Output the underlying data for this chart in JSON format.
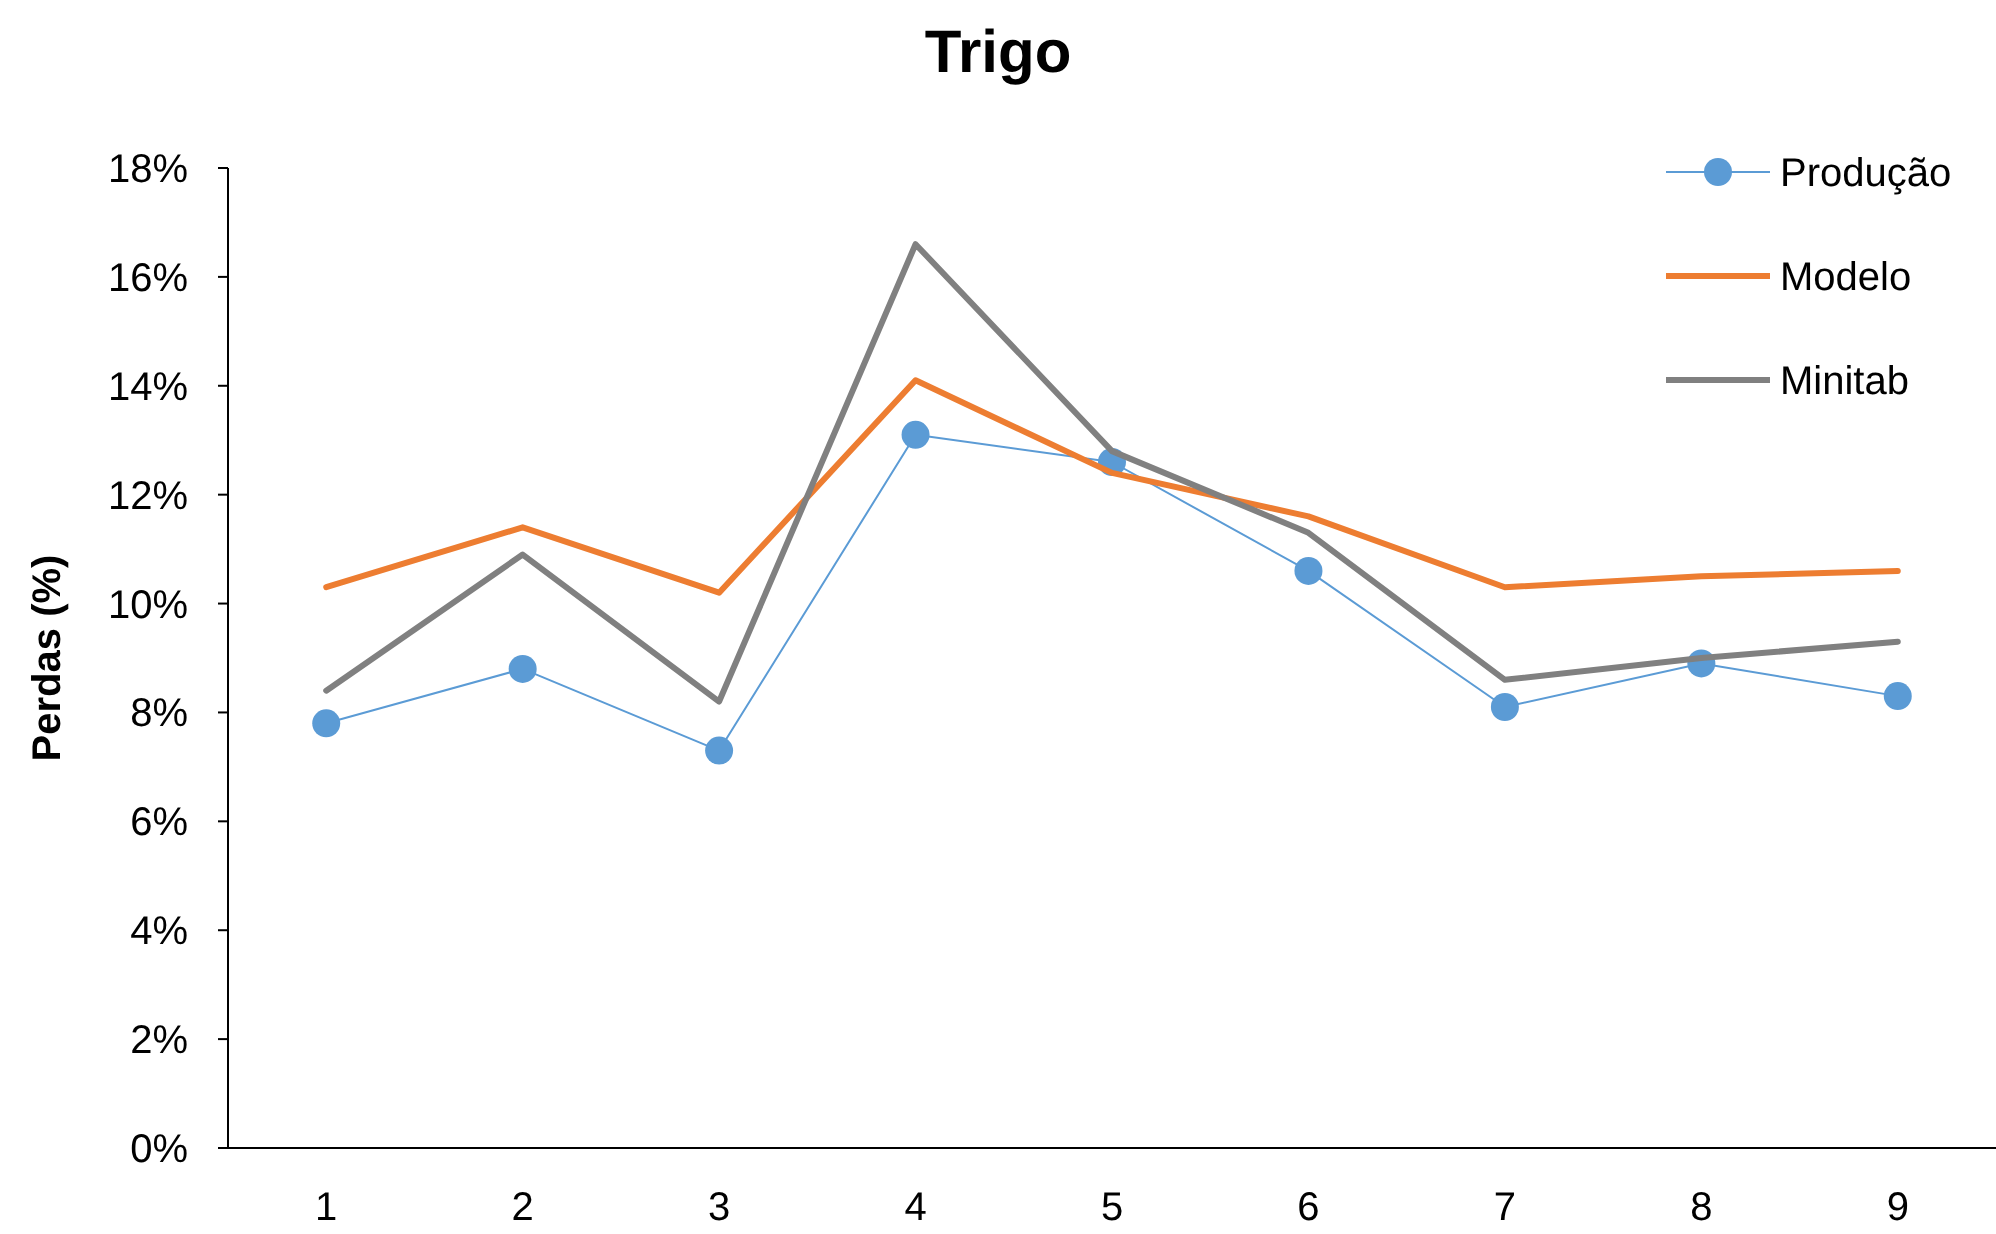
{
  "chart_data": {
    "type": "line",
    "title": "Trigo",
    "ylabel": "Perdas (%)",
    "categories": [
      "1",
      "2",
      "3",
      "4",
      "5",
      "6",
      "7",
      "8",
      "9"
    ],
    "series": [
      {
        "name": "Produção",
        "color": "#5b9bd5",
        "marker": "circle",
        "values": [
          7.8,
          8.8,
          7.3,
          13.1,
          12.6,
          10.6,
          8.1,
          8.9,
          8.3
        ]
      },
      {
        "name": "Modelo",
        "color": "#ed7d31",
        "marker": "none",
        "values": [
          10.3,
          11.4,
          10.2,
          14.1,
          12.4,
          11.6,
          10.3,
          10.5,
          10.6
        ]
      },
      {
        "name": "Minitab",
        "color": "#808080",
        "marker": "none",
        "values": [
          8.4,
          10.9,
          8.2,
          16.6,
          12.8,
          11.3,
          8.6,
          9.0,
          9.3
        ]
      }
    ],
    "ylim": [
      0,
      18
    ],
    "yticks": [
      {
        "value": 0,
        "label": "0%"
      },
      {
        "value": 2,
        "label": "2%"
      },
      {
        "value": 4,
        "label": "4%"
      },
      {
        "value": 6,
        "label": "6%"
      },
      {
        "value": 8,
        "label": "8%"
      },
      {
        "value": 10,
        "label": "10%"
      },
      {
        "value": 12,
        "label": "12%"
      },
      {
        "value": 14,
        "label": "14%"
      },
      {
        "value": 16,
        "label": "16%"
      },
      {
        "value": 18,
        "label": "18%"
      }
    ],
    "grid": false,
    "legend": "top right"
  }
}
